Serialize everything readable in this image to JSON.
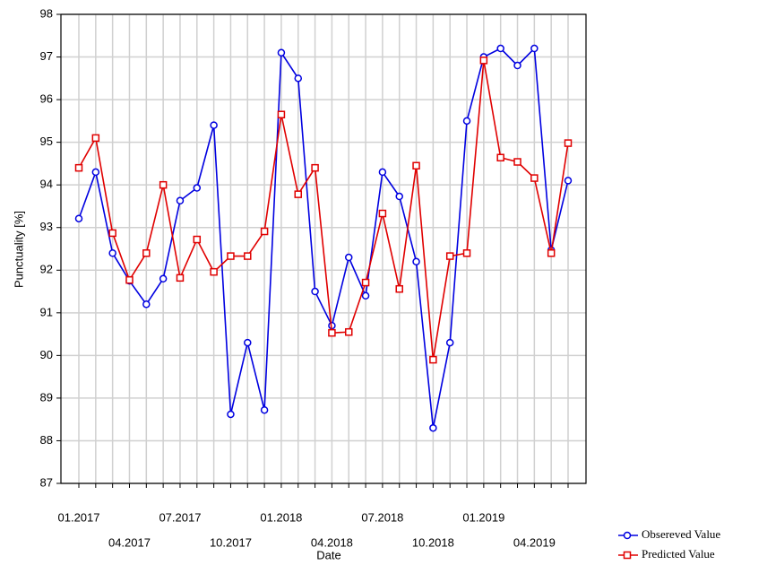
{
  "chart_data": {
    "type": "line",
    "x_label": "Date",
    "y_label": "Punctuality [%]",
    "categories": [
      "01.2017",
      null,
      null,
      "04.2017",
      null,
      null,
      "07.2017",
      null,
      null,
      "10.2017",
      null,
      null,
      "01.2018",
      null,
      null,
      "04.2018",
      null,
      null,
      "07.2018",
      null,
      null,
      "10.2018",
      null,
      null,
      "01.2019",
      null,
      null,
      "04.2019",
      null,
      null
    ],
    "series": [
      {
        "name": "Obsereved Value",
        "color": "#0000e0",
        "marker": "circle",
        "values": [
          93.21,
          94.3,
          92.4,
          91.75,
          91.2,
          91.8,
          93.63,
          93.93,
          95.4,
          88.62,
          90.3,
          88.72,
          97.1,
          96.5,
          91.5,
          90.7,
          92.3,
          91.4,
          94.3,
          93.73,
          92.2,
          88.3,
          90.3,
          95.5,
          97.0,
          97.2,
          96.8,
          97.2,
          92.47,
          94.1
        ]
      },
      {
        "name": "Predicted Value",
        "color": "#e00000",
        "marker": "square",
        "values": [
          94.4,
          95.1,
          92.87,
          91.77,
          92.4,
          94.0,
          91.82,
          92.72,
          91.96,
          92.33,
          92.33,
          92.91,
          95.65,
          93.78,
          94.4,
          90.53,
          90.55,
          91.71,
          93.33,
          91.56,
          94.45,
          89.9,
          92.33,
          92.4,
          96.92,
          94.64,
          94.54,
          94.16,
          92.4,
          94.98
        ]
      }
    ],
    "ylim": [
      87,
      98
    ],
    "yticks": [
      87,
      88,
      89,
      90,
      91,
      92,
      93,
      94,
      95,
      96,
      97,
      98
    ],
    "grid": true,
    "legend": "bottom-right"
  }
}
